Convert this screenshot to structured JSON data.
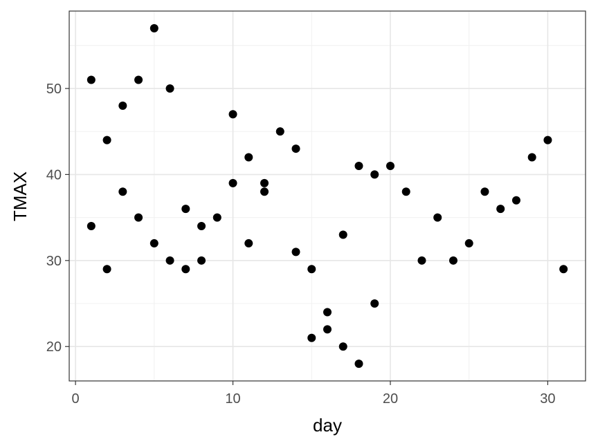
{
  "chart_data": {
    "type": "scatter",
    "title": "",
    "xlabel": "day",
    "ylabel": "TMAX",
    "xlim": [
      -0.4,
      32.4
    ],
    "ylim": [
      16.0,
      59.0
    ],
    "x_ticks": [
      0,
      10,
      20,
      30
    ],
    "y_ticks": [
      20,
      30,
      40,
      50
    ],
    "x_minor_ticks": [
      5,
      15,
      25
    ],
    "y_minor_ticks": [
      25,
      35,
      45,
      55
    ],
    "grid": true,
    "legend": "none",
    "colors": {
      "point": "#000000",
      "grid_major": "#e6e6e6",
      "grid_minor": "#f0f0f0",
      "border": "#333333"
    },
    "points": [
      {
        "x": 1,
        "y": 51
      },
      {
        "x": 1,
        "y": 34
      },
      {
        "x": 2,
        "y": 44
      },
      {
        "x": 2,
        "y": 29
      },
      {
        "x": 3,
        "y": 48
      },
      {
        "x": 3,
        "y": 38
      },
      {
        "x": 4,
        "y": 51
      },
      {
        "x": 4,
        "y": 35
      },
      {
        "x": 5,
        "y": 57
      },
      {
        "x": 5,
        "y": 32
      },
      {
        "x": 6,
        "y": 50
      },
      {
        "x": 6,
        "y": 30
      },
      {
        "x": 7,
        "y": 36
      },
      {
        "x": 7,
        "y": 29
      },
      {
        "x": 8,
        "y": 34
      },
      {
        "x": 8,
        "y": 30
      },
      {
        "x": 9,
        "y": 35
      },
      {
        "x": 10,
        "y": 47
      },
      {
        "x": 10,
        "y": 39
      },
      {
        "x": 11,
        "y": 42
      },
      {
        "x": 11,
        "y": 32
      },
      {
        "x": 12,
        "y": 39
      },
      {
        "x": 12,
        "y": 38
      },
      {
        "x": 13,
        "y": 45
      },
      {
        "x": 14,
        "y": 43
      },
      {
        "x": 14,
        "y": 31
      },
      {
        "x": 15,
        "y": 29
      },
      {
        "x": 15,
        "y": 21
      },
      {
        "x": 16,
        "y": 24
      },
      {
        "x": 16,
        "y": 22
      },
      {
        "x": 17,
        "y": 33
      },
      {
        "x": 17,
        "y": 20
      },
      {
        "x": 18,
        "y": 41
      },
      {
        "x": 18,
        "y": 18
      },
      {
        "x": 19,
        "y": 40
      },
      {
        "x": 19,
        "y": 25
      },
      {
        "x": 20,
        "y": 41
      },
      {
        "x": 21,
        "y": 38
      },
      {
        "x": 22,
        "y": 30
      },
      {
        "x": 23,
        "y": 35
      },
      {
        "x": 24,
        "y": 30
      },
      {
        "x": 25,
        "y": 32
      },
      {
        "x": 26,
        "y": 38
      },
      {
        "x": 27,
        "y": 36
      },
      {
        "x": 28,
        "y": 37
      },
      {
        "x": 29,
        "y": 42
      },
      {
        "x": 30,
        "y": 44
      },
      {
        "x": 31,
        "y": 29
      }
    ]
  }
}
